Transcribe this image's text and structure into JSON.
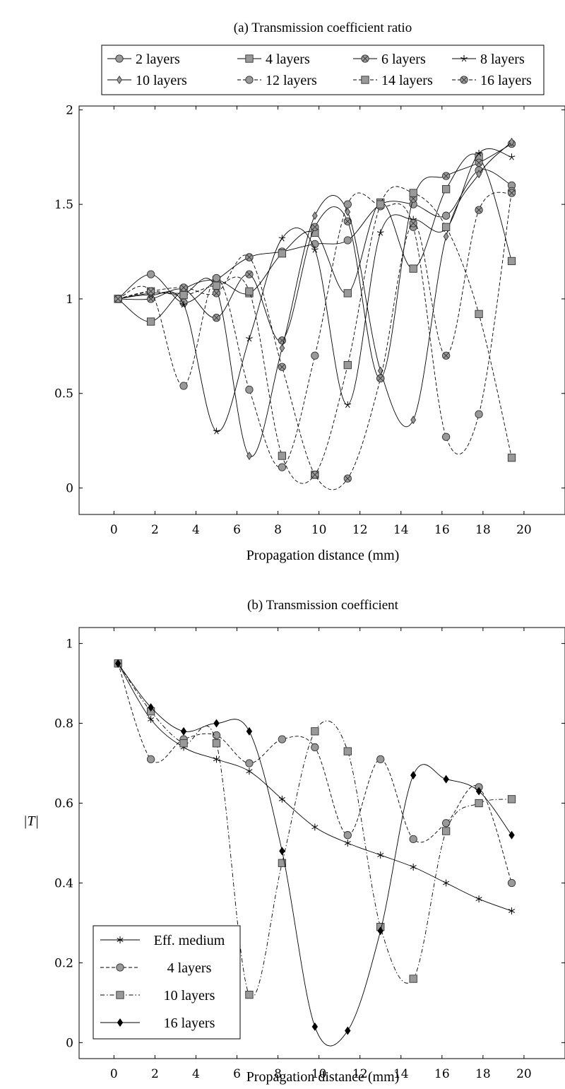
{
  "chart_data": [
    {
      "type": "line",
      "title": "(a) Transmission coefficient ratio",
      "xlabel": "Propagation distance (mm)",
      "ylabel": "",
      "xlim": [
        -1.7,
        22
      ],
      "ylim": [
        -0.14,
        2.02
      ],
      "xticks": [
        "0",
        "2",
        "4",
        "6",
        "8",
        "10",
        "12",
        "14",
        "16",
        "18",
        "20"
      ],
      "yticks": [
        "0",
        "0.5",
        "1",
        "1.5",
        "2"
      ],
      "grid": false,
      "legend": "top-outside",
      "legend_columns": 4,
      "series": [
        {
          "name": "2 layers",
          "marker": "circle",
          "dash": "solid",
          "x": [
            0.2,
            1.8,
            3.4,
            5.0,
            6.6,
            8.2,
            9.8,
            11.4,
            13.0,
            14.6,
            16.2,
            17.8,
            19.4
          ],
          "y": [
            1.0,
            1.13,
            0.98,
            1.1,
            1.22,
            1.25,
            1.29,
            1.31,
            1.5,
            1.5,
            1.44,
            1.68,
            1.6
          ]
        },
        {
          "name": "4 layers",
          "marker": "square",
          "dash": "solid",
          "x": [
            0.2,
            1.8,
            3.4,
            5.0,
            6.6,
            8.2,
            9.8,
            11.4,
            13.0,
            14.6,
            16.2,
            17.8,
            19.4
          ],
          "y": [
            1.0,
            0.88,
            1.05,
            1.1,
            1.03,
            1.24,
            1.35,
            1.03,
            1.51,
            1.16,
            1.58,
            1.75,
            1.2
          ]
        },
        {
          "name": "6 layers",
          "marker": "circle-x",
          "dash": "solid",
          "x": [
            0.2,
            1.8,
            3.4,
            5.0,
            6.6,
            8.2,
            9.8,
            11.4,
            13.0,
            14.6,
            16.2,
            17.8,
            19.4
          ],
          "y": [
            1.0,
            1.0,
            1.05,
            0.9,
            1.13,
            0.78,
            1.38,
            1.41,
            0.58,
            1.53,
            1.65,
            1.72,
            1.82
          ]
        },
        {
          "name": "8 layers",
          "marker": "star",
          "dash": "solid",
          "x": [
            0.2,
            1.8,
            3.4,
            5.0,
            6.6,
            8.2,
            9.8,
            11.4,
            13.0,
            14.6,
            16.2,
            17.8,
            19.4
          ],
          "y": [
            1.0,
            1.02,
            0.97,
            0.3,
            0.79,
            1.32,
            1.26,
            0.44,
            1.35,
            1.42,
            1.37,
            1.77,
            1.75
          ]
        },
        {
          "name": "10 layers",
          "marker": "diamond",
          "dash": "solid",
          "x": [
            0.2,
            1.8,
            3.4,
            5.0,
            6.6,
            8.2,
            9.8,
            11.4,
            13.0,
            14.6,
            16.2,
            17.8,
            19.4
          ],
          "y": [
            1.0,
            1.03,
            1.03,
            1.05,
            0.17,
            0.74,
            1.44,
            1.46,
            0.62,
            0.36,
            1.33,
            1.66,
            1.83
          ]
        },
        {
          "name": "12 layers",
          "marker": "circle",
          "dash": "dashed",
          "x": [
            0.2,
            1.8,
            3.4,
            5.0,
            6.6,
            8.2,
            9.8,
            11.4,
            13.0,
            14.6,
            16.2,
            17.8,
            19.4
          ],
          "y": [
            1.0,
            1.04,
            0.54,
            1.11,
            0.52,
            0.11,
            0.7,
            1.5,
            1.49,
            1.38,
            0.27,
            0.39,
            1.57
          ]
        },
        {
          "name": "14 layers",
          "marker": "square",
          "dash": "dashed",
          "x": [
            0.2,
            1.8,
            3.4,
            5.0,
            6.6,
            8.2,
            9.8,
            11.4,
            13.0,
            14.6,
            16.2,
            17.8,
            19.4
          ],
          "y": [
            1.0,
            1.04,
            1.02,
            1.07,
            1.04,
            0.17,
            0.07,
            0.65,
            1.5,
            1.56,
            1.38,
            0.92,
            0.16
          ]
        },
        {
          "name": "16 layers",
          "marker": "circle-x",
          "dash": "dashed",
          "x": [
            0.2,
            1.8,
            3.4,
            5.0,
            6.6,
            8.2,
            9.8,
            11.4,
            13.0,
            14.6,
            16.2,
            17.8,
            19.4
          ],
          "y": [
            1.0,
            1.04,
            1.06,
            1.03,
            1.22,
            0.64,
            0.07,
            0.05,
            0.58,
            1.4,
            0.7,
            1.47,
            1.56
          ]
        }
      ]
    },
    {
      "type": "line",
      "title": "(b) Transmission coefficient",
      "xlabel": "Propagation distance (mm)",
      "ylabel": "|T|",
      "xlim": [
        -1.7,
        22
      ],
      "ylim": [
        -0.04,
        1.04
      ],
      "xticks": [
        "0",
        "2",
        "4",
        "6",
        "8",
        "10",
        "12",
        "14",
        "16",
        "18",
        "20"
      ],
      "yticks": [
        "0",
        "0.2",
        "0.4",
        "0.6",
        "0.8",
        "1"
      ],
      "grid": false,
      "legend": "bottom-left",
      "series": [
        {
          "name": "Eff. medium",
          "marker": "asterisk",
          "dash": "solid",
          "x": [
            0.2,
            1.8,
            3.4,
            5.0,
            6.6,
            8.2,
            9.8,
            11.4,
            13.0,
            14.6,
            16.2,
            17.8,
            19.4
          ],
          "y": [
            0.95,
            0.81,
            0.74,
            0.71,
            0.68,
            0.61,
            0.54,
            0.5,
            0.47,
            0.44,
            0.4,
            0.36,
            0.33
          ]
        },
        {
          "name": "4 layers",
          "marker": "circle",
          "dash": "dashed",
          "x": [
            0.2,
            1.8,
            3.4,
            5.0,
            6.6,
            8.2,
            9.8,
            11.4,
            13.0,
            14.6,
            16.2,
            17.8,
            19.4
          ],
          "y": [
            0.95,
            0.71,
            0.76,
            0.77,
            0.7,
            0.76,
            0.74,
            0.52,
            0.71,
            0.51,
            0.55,
            0.64,
            0.4
          ]
        },
        {
          "name": "10 layers",
          "marker": "square",
          "dash": "dashdot",
          "x": [
            0.2,
            1.8,
            3.4,
            5.0,
            6.6,
            8.2,
            9.8,
            11.4,
            13.0,
            14.6,
            16.2,
            17.8,
            19.4
          ],
          "y": [
            0.95,
            0.83,
            0.75,
            0.75,
            0.12,
            0.45,
            0.78,
            0.73,
            0.29,
            0.16,
            0.53,
            0.6,
            0.61
          ]
        },
        {
          "name": "16 layers",
          "marker": "diamond-filled",
          "dash": "solid",
          "x": [
            0.2,
            1.8,
            3.4,
            5.0,
            6.6,
            8.2,
            9.8,
            11.4,
            13.0,
            14.6,
            16.2,
            17.8,
            19.4
          ],
          "y": [
            0.95,
            0.84,
            0.78,
            0.8,
            0.78,
            0.48,
            0.04,
            0.03,
            0.28,
            0.67,
            0.66,
            0.63,
            0.52
          ]
        }
      ]
    }
  ]
}
